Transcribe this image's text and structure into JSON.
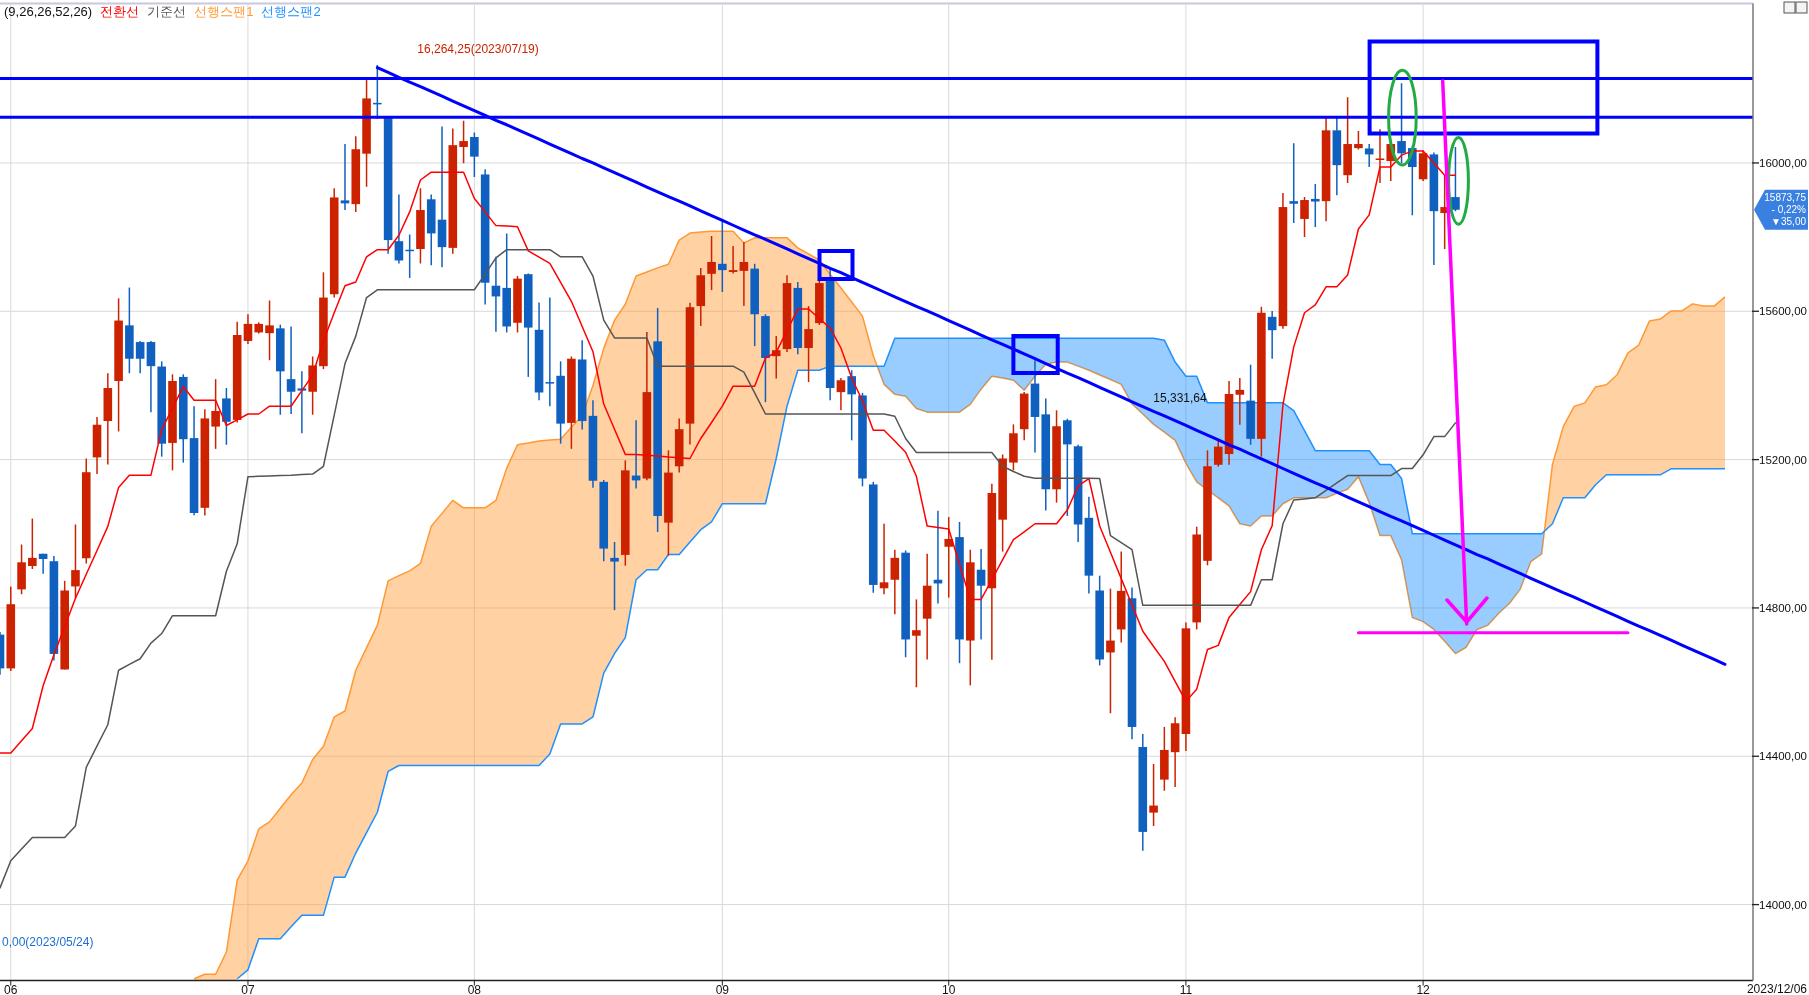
{
  "chart_data": {
    "type": "candlestick",
    "legend_title": "(9,26,26,52,26)",
    "legend": "top left",
    "grid": true,
    "categories": [
      null,
      "06",
      null,
      null,
      null,
      null,
      null,
      null,
      null,
      null,
      null,
      null,
      null,
      null,
      null,
      null,
      null,
      null,
      null,
      null,
      null,
      null,
      null,
      "07",
      null,
      null,
      null,
      null,
      null,
      null,
      null,
      null,
      null,
      null,
      null,
      null,
      null,
      null,
      null,
      null,
      null,
      null,
      null,
      null,
      "08",
      null,
      null,
      null,
      null,
      null,
      null,
      null,
      null,
      null,
      null,
      null,
      null,
      null,
      null,
      null,
      null,
      null,
      null,
      null,
      null,
      null,
      null,
      "09",
      null,
      null,
      null,
      null,
      null,
      null,
      null,
      null,
      null,
      null,
      null,
      null,
      null,
      null,
      null,
      null,
      null,
      null,
      null,
      null,
      "10",
      null,
      null,
      null,
      null,
      null,
      null,
      null,
      null,
      null,
      null,
      null,
      null,
      null,
      null,
      null,
      null,
      null,
      null,
      null,
      null,
      null,
      "11",
      null,
      null,
      null,
      null,
      null,
      null,
      null,
      null,
      null,
      null,
      null,
      null,
      null,
      null,
      null,
      null,
      null,
      null,
      null,
      null,
      null,
      "12",
      null,
      null,
      null,
      null,
      null,
      null,
      null,
      null,
      null,
      null,
      null,
      null,
      null,
      null,
      null,
      null,
      null,
      null,
      null,
      null,
      null,
      null,
      null,
      null,
      null,
      null,
      null,
      null
    ],
    "ylim": [
      13795,
      16430
    ],
    "yticks": [
      {
        "value": 14000,
        "label": "14000,00"
      },
      {
        "value": 14400,
        "label": "14400,00"
      },
      {
        "value": 14800,
        "label": "14800,00"
      },
      {
        "value": 15200,
        "label": "15200,00"
      },
      {
        "value": 15600,
        "label": "15600,00"
      },
      {
        "value": 16000,
        "label": "16000,00"
      }
    ],
    "series": [
      {
        "ohlc": [
          [
            14728,
            14735,
            14620,
            14637
          ],
          [
            14637,
            14858,
            14630,
            14810
          ],
          [
            14850,
            14971,
            14837,
            14923
          ],
          [
            14913,
            15041,
            14905,
            14935
          ],
          [
            14946,
            14946,
            14892,
            14932
          ],
          [
            14926,
            14940,
            14658,
            14676
          ],
          [
            14634,
            14873,
            14634,
            14847
          ],
          [
            14858,
            15025,
            14826,
            14902
          ],
          [
            14934,
            15203,
            14920,
            15166
          ],
          [
            15206,
            15315,
            15161,
            15294
          ],
          [
            15304,
            15433,
            15187,
            15393
          ],
          [
            15412,
            15635,
            15276,
            15575
          ],
          [
            15562,
            15664,
            15433,
            15472
          ],
          [
            15517,
            15520,
            15433,
            15472
          ],
          [
            15517,
            15520,
            15328,
            15452
          ],
          [
            15451,
            15465,
            15208,
            15243
          ],
          [
            15245,
            15430,
            15171,
            15412
          ],
          [
            15423,
            15430,
            15192,
            15255
          ],
          [
            15258,
            15344,
            15050,
            15056
          ],
          [
            15070,
            15336,
            15049,
            15311
          ],
          [
            15289,
            15417,
            15229,
            15331
          ],
          [
            15365,
            15393,
            15240,
            15302
          ],
          [
            15307,
            15572,
            15300,
            15536
          ],
          [
            15520,
            15592,
            15512,
            15566
          ],
          [
            15543,
            15570,
            15540,
            15566
          ],
          [
            15541,
            15629,
            15468,
            15562
          ],
          [
            15554,
            15564,
            15321,
            15438
          ],
          [
            15417,
            15559,
            15323,
            15383
          ],
          [
            15392,
            15438,
            15271,
            15386
          ],
          [
            15383,
            15478,
            15321,
            15454
          ],
          [
            15452,
            15705,
            15444,
            15637
          ],
          [
            15646,
            15932,
            15637,
            15907
          ],
          [
            15899,
            16051,
            15873,
            15891
          ],
          [
            15889,
            16072,
            15868,
            16037
          ],
          [
            16025,
            16224,
            15936,
            16174
          ],
          [
            16162,
            16264.25,
            16119,
            16158
          ],
          [
            16121,
            16125,
            15755,
            15792
          ],
          [
            15789,
            15915,
            15729,
            15737
          ],
          [
            15766,
            15807,
            15690,
            15764
          ],
          [
            15768,
            15932,
            15729,
            15873
          ],
          [
            15902,
            15915,
            15724,
            15810
          ],
          [
            15847,
            16098,
            15719,
            15773
          ],
          [
            15771,
            16093,
            15755,
            16048
          ],
          [
            16043,
            16114,
            15999,
            16059
          ],
          [
            16070,
            16082,
            15962,
            16017
          ],
          [
            15969,
            15983,
            15618,
            15677
          ],
          [
            15669,
            15747,
            15545,
            15640
          ],
          [
            15663,
            15810,
            15543,
            15559
          ],
          [
            15569,
            15695,
            15543,
            15688
          ],
          [
            15700,
            15702,
            15423,
            15556
          ],
          [
            15550,
            15624,
            15360,
            15381
          ],
          [
            15409,
            15637,
            15344,
            15405
          ],
          [
            15426,
            15465,
            15243,
            15297
          ],
          [
            15299,
            15478,
            15229,
            15472
          ],
          [
            15470,
            15522,
            15281,
            15304
          ],
          [
            15318,
            15360,
            15124,
            15143
          ],
          [
            15140,
            15145,
            14926,
            14960
          ],
          [
            14935,
            14978,
            14794,
            14925
          ],
          [
            14943,
            15198,
            14914,
            15171
          ],
          [
            15157,
            15306,
            15122,
            15144
          ],
          [
            15149,
            15544,
            15144,
            15382
          ],
          [
            15519,
            15609,
            15005,
            15048
          ],
          [
            15030,
            15225,
            14941,
            15165
          ],
          [
            15182,
            15311,
            15165,
            15282
          ],
          [
            15297,
            15623,
            15241,
            15611
          ],
          [
            15614,
            15717,
            15560,
            15697
          ],
          [
            15701,
            15803,
            15657,
            15733
          ],
          [
            15728,
            15849,
            15652,
            15711
          ],
          [
            15706,
            15776,
            15702,
            15711
          ],
          [
            15709,
            15787,
            15614,
            15733
          ],
          [
            15715,
            15728,
            15506,
            15592
          ],
          [
            15587,
            15592,
            15355,
            15474
          ],
          [
            15479,
            15533,
            15419,
            15495
          ],
          [
            15498,
            15697,
            15490,
            15676
          ],
          [
            15663,
            15679,
            15484,
            15501
          ],
          [
            15501,
            15614,
            15409,
            15552
          ],
          [
            15568,
            15684,
            15563,
            15676
          ],
          [
            15684,
            15715,
            15360,
            15393
          ],
          [
            15382,
            15420,
            15333,
            15414
          ],
          [
            15425,
            15441,
            15252,
            15376
          ],
          [
            15373,
            15380,
            15128,
            15149
          ],
          [
            15133,
            15140,
            14841,
            14862
          ],
          [
            14853,
            15027,
            14837,
            14869
          ],
          [
            14876,
            14957,
            14783,
            14935
          ],
          [
            14949,
            14955,
            14667,
            14715
          ],
          [
            14725,
            14823,
            14586,
            14740
          ],
          [
            14771,
            14946,
            14661,
            14860
          ],
          [
            14876,
            15062,
            14812,
            14866
          ],
          [
            14965,
            15045,
            14828,
            14986
          ],
          [
            14991,
            15032,
            14651,
            14715
          ],
          [
            14712,
            14957,
            14591,
            14923
          ],
          [
            14903,
            14959,
            14715,
            14860
          ],
          [
            14853,
            15135,
            14660,
            15110
          ],
          [
            15038,
            15214,
            14952,
            15203
          ],
          [
            15192,
            15295,
            15171,
            15271
          ],
          [
            15282,
            15382,
            15252,
            15378
          ],
          [
            15405,
            15468,
            15219,
            15315
          ],
          [
            15322,
            15365,
            15063,
            15120
          ],
          [
            15120,
            15333,
            15084,
            15290
          ],
          [
            15306,
            15310,
            15048,
            15241
          ],
          [
            15236,
            15240,
            14978,
            15025
          ],
          [
            15043,
            15100,
            14839,
            14887
          ],
          [
            14847,
            14887,
            14645,
            14661
          ],
          [
            14680,
            14852,
            14516,
            14712
          ],
          [
            14742,
            14952,
            14707,
            14846
          ],
          [
            14826,
            14855,
            14446,
            14479
          ],
          [
            14425,
            14460,
            14145,
            14196
          ],
          [
            14248,
            14379,
            14212,
            14267
          ],
          [
            14337,
            14479,
            14307,
            14417
          ],
          [
            14411,
            14505,
            14317,
            14489
          ],
          [
            14460,
            14761,
            14414,
            14745
          ],
          [
            14761,
            15019,
            14742,
            14998
          ],
          [
            14927,
            15225,
            14915,
            15182
          ],
          [
            15186,
            15256,
            15181,
            15235
          ],
          [
            15215,
            15412,
            15186,
            15377
          ],
          [
            15375,
            15420,
            15294,
            15388
          ],
          [
            15359,
            15456,
            15240,
            15256
          ],
          [
            15256,
            15612,
            15208,
            15596
          ],
          [
            15585,
            15601,
            15472,
            15549
          ],
          [
            15560,
            15919,
            15553,
            15881
          ],
          [
            15897,
            16053,
            15838,
            15890
          ],
          [
            15849,
            15908,
            15800,
            15900
          ],
          [
            15903,
            15943,
            15827,
            15896
          ],
          [
            15897,
            16123,
            15843,
            16088
          ],
          [
            16088,
            16123,
            15913,
            15994
          ],
          [
            15967,
            16177,
            15946,
            16051
          ],
          [
            16040,
            16086,
            16036,
            16051
          ],
          [
            16039,
            16051,
            15989,
            16023
          ],
          [
            16008,
            16091,
            15946,
            16012
          ],
          [
            16005,
            16055,
            15951,
            16051
          ],
          [
            16059,
            16215,
            15999,
            16026
          ],
          [
            16040,
            16045,
            15859,
            15989
          ],
          [
            15956,
            16034,
            15951,
            16026
          ],
          [
            16023,
            16028,
            15725,
            15870
          ],
          [
            15865,
            15967,
            15768,
            15881
          ],
          [
            15908,
            16043,
            15870,
            15873.75
          ],
          null,
          null,
          null,
          null,
          null,
          null,
          null,
          null,
          null,
          null,
          null,
          null,
          null,
          null,
          null,
          null,
          null,
          null,
          null,
          null,
          null,
          null,
          null,
          null,
          null
        ],
        "colors": [
          "#1060c0",
          "#cc2200",
          "#cc2200",
          "#cc2200",
          "#1060c0",
          "#1060c0",
          "#cc2200",
          "#cc2200",
          "#cc2200",
          "#cc2200",
          "#cc2200",
          "#cc2200",
          "#1060c0",
          "#1060c0",
          "#1060c0",
          "#1060c0",
          "#cc2200",
          "#1060c0",
          "#1060c0",
          "#cc2200",
          "#cc2200",
          "#1060c0",
          "#cc2200",
          "#cc2200",
          "#cc2200",
          "#cc2200",
          "#1060c0",
          "#1060c0",
          "#1060c0",
          "#cc2200",
          "#cc2200",
          "#cc2200",
          "#1060c0",
          "#cc2200",
          "#cc2200",
          "#1060c0",
          "#1060c0",
          "#1060c0",
          "#1060c0",
          "#cc2200",
          "#1060c0",
          "#1060c0",
          "#cc2200",
          "#cc2200",
          "#1060c0",
          "#1060c0",
          "#1060c0",
          "#1060c0",
          "#cc2200",
          "#1060c0",
          "#1060c0",
          "#1060c0",
          "#1060c0",
          "#cc2200",
          "#1060c0",
          "#1060c0",
          "#1060c0",
          "#1060c0",
          "#cc2200",
          "#1060c0",
          "#cc2200",
          "#1060c0",
          "#cc2200",
          "#cc2200",
          "#cc2200",
          "#cc2200",
          "#cc2200",
          "#1060c0",
          "#cc2200",
          "#cc2200",
          "#1060c0",
          "#1060c0",
          "#cc2200",
          "#cc2200",
          "#1060c0",
          "#cc2200",
          "#cc2200",
          "#1060c0",
          "#cc2200",
          "#1060c0",
          "#1060c0",
          "#1060c0",
          "#cc2200",
          "#cc2200",
          "#1060c0",
          "#cc2200",
          "#cc2200",
          "#1060c0",
          "#cc2200",
          "#1060c0",
          "#cc2200",
          "#1060c0",
          "#cc2200",
          "#cc2200",
          "#cc2200",
          "#cc2200",
          "#1060c0",
          "#1060c0",
          "#cc2200",
          "#1060c0",
          "#1060c0",
          "#1060c0",
          "#1060c0",
          "#cc2200",
          "#cc2200",
          "#1060c0",
          "#1060c0",
          "#cc2200",
          "#cc2200",
          "#cc2200",
          "#cc2200",
          "#cc2200",
          "#cc2200",
          "#cc2200",
          "#cc2200",
          "#cc2200",
          "#1060c0",
          "#cc2200",
          "#1060c0",
          "#cc2200",
          "#1060c0",
          "#cc2200",
          "#1060c0",
          "#cc2200",
          "#1060c0",
          "#cc2200",
          "#cc2200",
          "#1060c0",
          "#cc2200",
          "#cc2200",
          "#1060c0",
          "#1060c0",
          "#cc2200",
          "#1060c0",
          "#cc2200",
          "#1060c0",
          null,
          null,
          null,
          null,
          null,
          null,
          null,
          null,
          null,
          null,
          null,
          null,
          null,
          null,
          null,
          null,
          null,
          null,
          null,
          null,
          null,
          null,
          null,
          null,
          null
        ]
      },
      {
        "type": "line",
        "name": "전환선",
        "color": "#ff0000",
        "values": [
          14409,
          14409,
          14442,
          14475,
          14590,
          14674,
          14750,
          14826,
          14891,
          14955,
          15020,
          15125,
          15158,
          15158,
          15158,
          15281,
          15339,
          15397,
          15360,
          15360,
          15360,
          15292,
          15307,
          15323,
          15323,
          15344,
          15344,
          15344,
          15386,
          15428,
          15520,
          15596,
          15669,
          15679,
          15747,
          15766,
          15766,
          15805,
          15868,
          15954,
          15975,
          15975,
          15975,
          15975,
          15904,
          15868,
          15831,
          15830,
          15828,
          15763,
          15746,
          15729,
          15678,
          15627,
          15559,
          15491,
          15350,
          15282,
          15214,
          15214,
          15212,
          15210,
          15207,
          15205,
          15203,
          15257,
          15300,
          15344,
          15398,
          15398,
          15398,
          15474,
          15490,
          15548,
          15606,
          15606,
          15580,
          15555,
          15501,
          15420,
          15358,
          15279,
          15279,
          15250,
          15220,
          15155,
          15021,
          15017,
          15013,
          14918,
          14823,
          14823,
          14876,
          14930,
          14984,
          15005,
          15027,
          15027,
          15027,
          15064,
          15129,
          15149,
          15021,
          14950,
          14879,
          14808,
          14737,
          14696,
          14656,
          14602,
          14548,
          14581,
          14688,
          14699,
          14774,
          14809,
          14844,
          14957,
          15022,
          15348,
          15504,
          15596,
          15617,
          15666,
          15666,
          15698,
          15822,
          15860,
          15989,
          15989,
          16021,
          16032,
          16032,
          16000,
          15967,
          15967,
          null,
          null,
          null,
          null,
          null,
          null,
          null,
          null,
          null,
          null,
          null,
          null,
          null,
          null,
          null,
          null,
          null,
          null,
          null,
          null,
          null,
          null,
          null,
          null,
          null
        ]
      },
      {
        "type": "line",
        "name": "기준선",
        "color": "#555555",
        "values": [
          14045,
          14118,
          14150,
          14181,
          14181,
          14181,
          14181,
          14212,
          14370,
          14428,
          14485,
          14632,
          14648,
          14663,
          14705,
          14731,
          14779,
          14779,
          14779,
          14779,
          14779,
          14899,
          14973,
          15154,
          15155,
          15156,
          15157,
          15158,
          15160,
          15161,
          15182,
          15320,
          15459,
          15533,
          15637,
          15658,
          15658,
          15658,
          15658,
          15658,
          15658,
          15658,
          15658,
          15658,
          15658,
          15700,
          15744,
          15766,
          15766,
          15766,
          15766,
          15766,
          15747,
          15747,
          15747,
          15695,
          15576,
          15528,
          15528,
          15528,
          15528,
          15452,
          15452,
          15452,
          15452,
          15452,
          15452,
          15452,
          15452,
          15436,
          15380,
          15323,
          15323,
          15323,
          15323,
          15323,
          15323,
          15323,
          15323,
          15323,
          15323,
          15323,
          15323,
          15317,
          15257,
          15219,
          15219,
          15219,
          15219,
          15219,
          15219,
          15219,
          15219,
          15182,
          15168,
          15155,
          15150,
          15150,
          15150,
          15150,
          15150,
          15150,
          15149,
          14995,
          14976,
          14957,
          14807,
          14807,
          14807,
          14807,
          14807,
          14807,
          14807,
          14807,
          14807,
          14807,
          14807,
          14876,
          14876,
          15027,
          15091,
          15094,
          15097,
          15117,
          15137,
          15157,
          15157,
          15157,
          15157,
          15157,
          15176,
          15176,
          15213,
          15262,
          15262,
          15299,
          null,
          null,
          null,
          null,
          null,
          null,
          null,
          null,
          null,
          null,
          null,
          null,
          null,
          null,
          null,
          null,
          null,
          null,
          null,
          null,
          null,
          null,
          null,
          null,
          null
        ]
      },
      {
        "type": "area",
        "name": "선행스팬1",
        "color": "#ff9933",
        "values": [
          null,
          null,
          null,
          null,
          null,
          null,
          null,
          null,
          null,
          null,
          null,
          null,
          null,
          null,
          null,
          null,
          null,
          null,
          13800,
          13812,
          13812,
          13872,
          14066,
          14118,
          14204,
          14223,
          14260,
          14296,
          14328,
          14391,
          14427,
          14506,
          14522,
          14632,
          14693,
          14753,
          14873,
          14887,
          14900,
          14920,
          15020,
          15055,
          15090,
          15070,
          15070,
          15070,
          15090,
          15177,
          15240,
          15245,
          15250,
          15253,
          15255,
          15287,
          15318,
          15400,
          15500,
          15576,
          15619,
          15695,
          15706,
          15717,
          15727,
          15792,
          15811,
          15814,
          15816,
          15816,
          15816,
          15784,
          15798,
          15798,
          15798,
          15798,
          15771,
          15755,
          15738,
          15700,
          15663,
          15625,
          15587,
          15480,
          15403,
          15376,
          15371,
          15338,
          15328,
          15328,
          15328,
          15328,
          15349,
          15390,
          15425,
          15420,
          15414,
          15387,
          15425,
          15457,
          15463,
          15463,
          15452,
          15441,
          15428,
          15416,
          15403,
          15350,
          15323,
          15295,
          15274,
          15252,
          15190,
          15140,
          15118,
          15097,
          15075,
          15027,
          15021,
          15048,
          15048,
          15081,
          15097,
          15097,
          15097,
          15097,
          15109,
          15120,
          15154,
          15084,
          14995,
          14995,
          14930,
          14774,
          14763,
          14742,
          14710,
          14677,
          14694,
          14742,
          14753,
          14785,
          14812,
          14850,
          14925,
          14946,
          15187,
          15289,
          15343,
          15353,
          15396,
          15402,
          15429,
          15488,
          15509,
          15574,
          15579,
          15601,
          15601,
          15620,
          15614,
          15614,
          15639
        ]
      },
      {
        "type": "area",
        "name": "선행스팬2",
        "color": "#1e90ff",
        "values": [
          null,
          null,
          null,
          null,
          null,
          null,
          null,
          null,
          null,
          null,
          null,
          null,
          null,
          null,
          null,
          null,
          null,
          null,
          null,
          null,
          null,
          null,
          13800,
          13824,
          13908,
          13908,
          13908,
          13940,
          13971,
          13971,
          13971,
          14074,
          14074,
          14139,
          14194,
          14249,
          14359,
          14375,
          14375,
          14375,
          14375,
          14375,
          14375,
          14375,
          14375,
          14375,
          14375,
          14375,
          14375,
          14375,
          14375,
          14406,
          14487,
          14487,
          14487,
          14506,
          14624,
          14677,
          14720,
          14876,
          14903,
          14903,
          14944,
          14944,
          14978,
          15011,
          15032,
          15081,
          15081,
          15081,
          15081,
          15081,
          15203,
          15344,
          15441,
          15441,
          15441,
          15452,
          15452,
          15452,
          15452,
          15452,
          15452,
          15527,
          15527,
          15527,
          15527,
          15527,
          15527,
          15527,
          15527,
          15527,
          15527,
          15527,
          15527,
          15527,
          15527,
          15527,
          15527,
          15527,
          15527,
          15527,
          15527,
          15527,
          15527,
          15527,
          15527,
          15527,
          15522,
          15463,
          15425,
          15425,
          15353,
          15353,
          15353,
          15353,
          15353,
          15353,
          15353,
          15353,
          15332,
          15278,
          15224,
          15224,
          15224,
          15224,
          15224,
          15224,
          15187,
          15187,
          15149,
          15000,
          15000,
          15000,
          15000,
          15000,
          15000,
          15000,
          15000,
          15000,
          15000,
          15000,
          15000,
          15000,
          15027,
          15097,
          15097,
          15097,
          15132,
          15159,
          15159,
          15159,
          15159,
          15159,
          15159,
          15175,
          15175,
          15175,
          15175,
          15175,
          15175
        ]
      },
      {
        "type": "line",
        "color": "#0000ff",
        "values": [
          null,
          null,
          null,
          null,
          null,
          null,
          null,
          null,
          null,
          null,
          null,
          null,
          null,
          null,
          null,
          null,
          null,
          null,
          null,
          null,
          null,
          null,
          null,
          null,
          null,
          null,
          null,
          null,
          null,
          null,
          null,
          null,
          null,
          null,
          null,
          16257,
          16244,
          16231,
          16218,
          16206,
          16193,
          16180,
          16167,
          16154,
          16141,
          16128,
          16115,
          16103,
          16090,
          16077,
          16064,
          16051,
          16038,
          16025,
          16012,
          16000,
          15987,
          15974,
          15961,
          15948,
          15935,
          15922,
          15909,
          15897,
          15884,
          15871,
          15858,
          15845,
          15832,
          15819,
          15806,
          15794,
          15781,
          15768,
          15755,
          15742,
          15729,
          15716,
          15704,
          15691,
          15678,
          15665,
          15652,
          15639,
          15626,
          15613,
          15601,
          15588,
          15575,
          15562,
          15549,
          15536,
          15523,
          15511,
          15498,
          15485,
          15472,
          15459,
          15446,
          15433,
          15421,
          15408,
          15395,
          15382,
          15369,
          15356,
          15343,
          15330,
          15318,
          15305,
          15292,
          15279,
          15266,
          15253,
          15240,
          15228,
          15215,
          15202,
          15189,
          15176,
          15163,
          15150,
          15137,
          15125,
          15112,
          15099,
          15086,
          15073,
          15060,
          15047,
          15035,
          15022,
          15009,
          14996,
          14983,
          14970,
          14957,
          14944,
          14932,
          14919,
          14906,
          14893,
          14880,
          14867,
          14854,
          14841,
          14829,
          14816,
          14803,
          14790,
          14777,
          14764,
          14751,
          14739,
          14726,
          14713,
          14700,
          14687,
          14674,
          14661,
          14648
        ]
      },
      {
        "type": "line",
        "color": "#ff00ff",
        "values": [
          null,
          null,
          null,
          null,
          null,
          null,
          null,
          null,
          null,
          null,
          null,
          null,
          null,
          null,
          null,
          null,
          null,
          null,
          null,
          null,
          null,
          null,
          null,
          null,
          null,
          null,
          null,
          null,
          null,
          null,
          null,
          null,
          null,
          null,
          null,
          null,
          null,
          null,
          null,
          null,
          null,
          null,
          null,
          null,
          null,
          null,
          null,
          null,
          null,
          null,
          null,
          null,
          null,
          null,
          null,
          null,
          null,
          null,
          null,
          null,
          null,
          null,
          null,
          null,
          null,
          null,
          null,
          null,
          null,
          null,
          null,
          null,
          null,
          null,
          null,
          null,
          null,
          null,
          null,
          null,
          null,
          null,
          null,
          null,
          null,
          null,
          null,
          null,
          null,
          null,
          null,
          null,
          null,
          null,
          null,
          null,
          null,
          null,
          null,
          null,
          null,
          null,
          null,
          null,
          null,
          null,
          null,
          null,
          null,
          null,
          null,
          null,
          null,
          null,
          null,
          null,
          null,
          null,
          null,
          null,
          null,
          null,
          null,
          null,
          null,
          null,
          14733,
          14733,
          14733,
          14733,
          14733,
          14733,
          14733,
          14733,
          14733,
          14733,
          14733,
          14733,
          14733,
          14733,
          14733,
          14733,
          14733,
          14733,
          14733,
          14733,
          14733,
          14733,
          14733,
          14733,
          14733,
          14733,
          null,
          null,
          null,
          null,
          null,
          null,
          null,
          null,
          null
        ]
      }
    ],
    "ref_lines": [
      {
        "axis": "y",
        "value": 16228,
        "color": "#0000ff"
      },
      {
        "axis": "y",
        "value": 16123,
        "color": "#0000ff"
      }
    ],
    "annotations": [
      "16,264,25(2023/07/19)",
      "15,331,64",
      "15873,75",
      "- 0,22%",
      "▼35,00",
      "0,00(2023/05/24)",
      "2023/12/06"
    ]
  }
}
